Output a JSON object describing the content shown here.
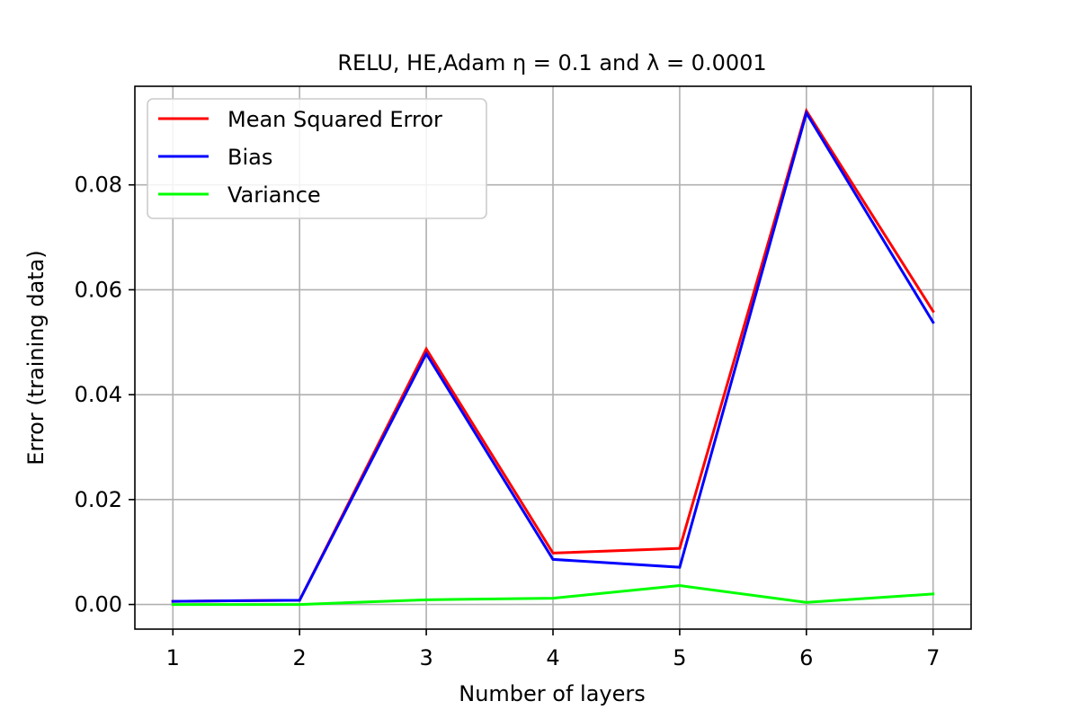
{
  "chart_data": {
    "type": "line",
    "title": "RELU, HE,Adam η = 0.1 and λ = 0.0001",
    "xlabel": "Number of layers",
    "ylabel": "Error (training data)",
    "x": [
      1,
      2,
      3,
      4,
      5,
      6,
      7
    ],
    "xlim": [
      0.7,
      7.3
    ],
    "ylim": [
      -0.0047,
      0.0988
    ],
    "x_ticks": [
      1,
      2,
      3,
      4,
      5,
      6,
      7
    ],
    "x_tick_labels": [
      "1",
      "2",
      "3",
      "4",
      "5",
      "6",
      "7"
    ],
    "y_ticks": [
      0.0,
      0.02,
      0.04,
      0.06,
      0.08
    ],
    "y_tick_labels": [
      "0.00",
      "0.02",
      "0.04",
      "0.06",
      "0.08"
    ],
    "grid": true,
    "legend_position": "top-left",
    "series": [
      {
        "name": "Mean Squared Error",
        "color": "#ff0000",
        "values": [
          0.0006,
          0.0008,
          0.0487,
          0.0098,
          0.0107,
          0.0941,
          0.0559
        ]
      },
      {
        "name": "Bias",
        "color": "#0000ff",
        "values": [
          0.0006,
          0.0008,
          0.0478,
          0.0086,
          0.0071,
          0.0937,
          0.0538
        ]
      },
      {
        "name": "Variance",
        "color": "#00ff00",
        "values": [
          0.0,
          0.0,
          0.0009,
          0.0012,
          0.0036,
          0.0004,
          0.002
        ]
      }
    ]
  }
}
